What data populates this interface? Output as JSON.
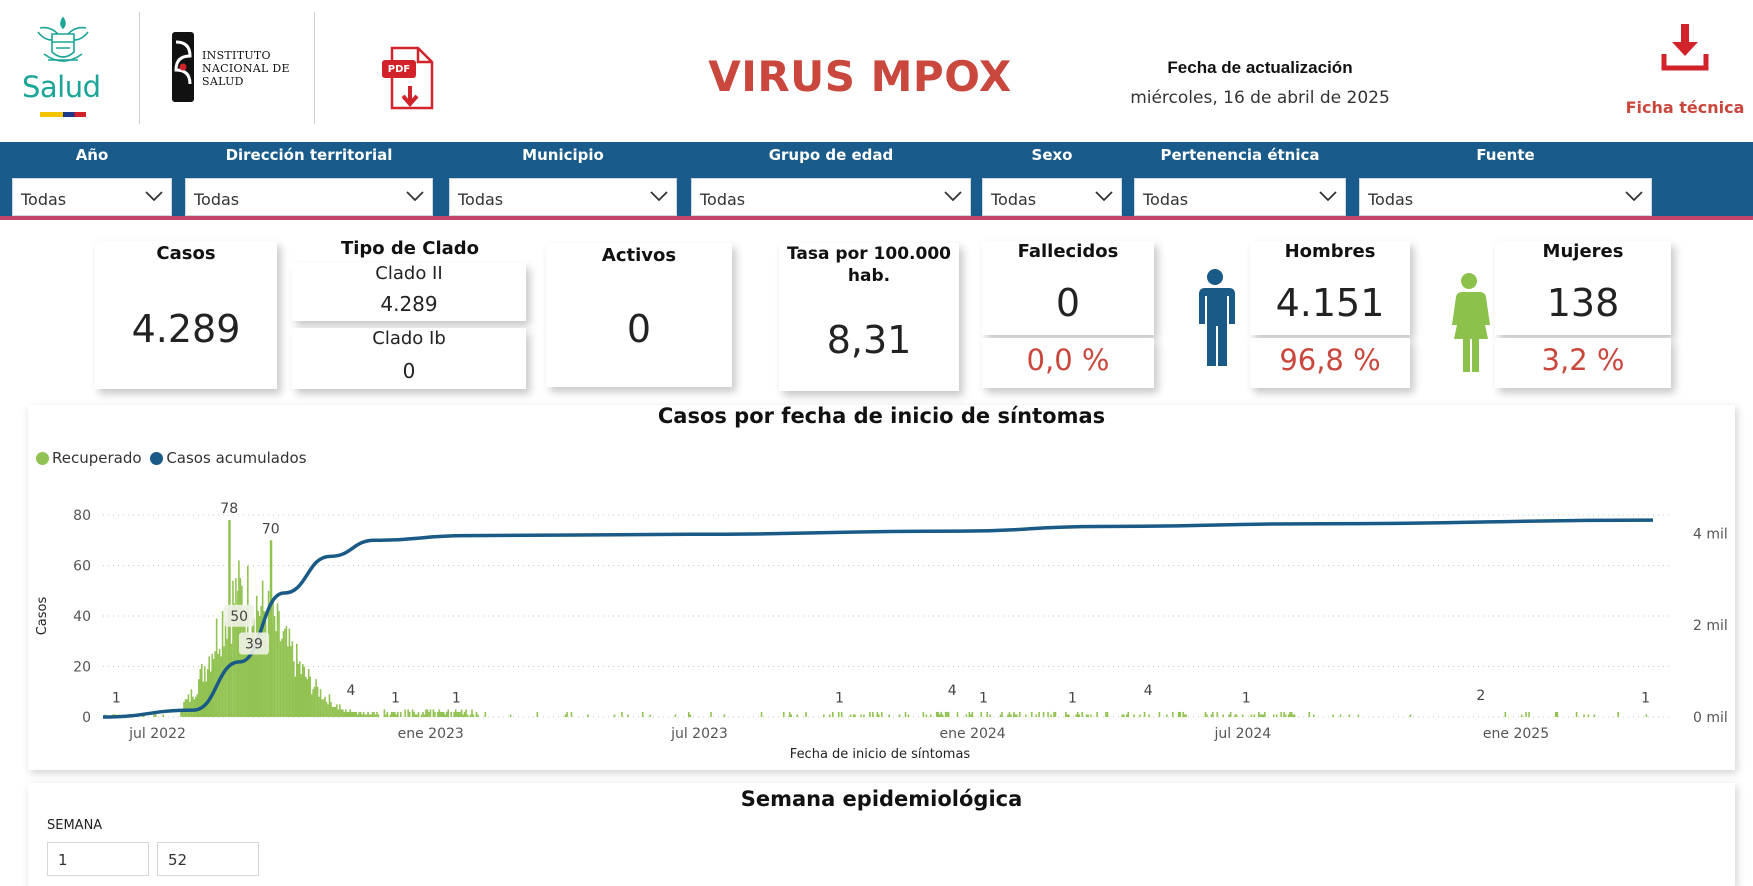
{
  "header": {
    "logo_salud_text": "Salud",
    "logo_ins_lines": [
      "Instituto",
      "Nacional de",
      "Salud"
    ],
    "pdf_icon_label": "PDF",
    "title": "VIRUS MPOX",
    "update_label": "Fecha de actualización",
    "update_date": "miércoles, 16 de abril de 2025",
    "ficha_label": "Ficha técnica"
  },
  "filters": [
    {
      "label": "Año",
      "value": "Todas"
    },
    {
      "label": "Dirección territorial",
      "value": "Todas"
    },
    {
      "label": "Municipio",
      "value": "Todas"
    },
    {
      "label": "Grupo de edad",
      "value": "Todas"
    },
    {
      "label": "Sexo",
      "value": "Todas"
    },
    {
      "label": "Pertenencia étnica",
      "value": "Todas"
    },
    {
      "label": "Fuente",
      "value": "Todas"
    }
  ],
  "kpis": {
    "casos": {
      "title": "Casos",
      "value": "4.289"
    },
    "clado": {
      "title": "Tipo de Clado",
      "items": [
        {
          "label": "Clado II",
          "value": "4.289"
        },
        {
          "label": "Clado Ib",
          "value": "0"
        }
      ]
    },
    "activos": {
      "title": "Activos",
      "value": "0"
    },
    "tasa": {
      "title_line1": "Tasa por 100.000",
      "title_line2": "hab.",
      "value": "8,31"
    },
    "fallecidos": {
      "title": "Fallecidos",
      "value": "0",
      "percent": "0,0 %"
    },
    "hombres": {
      "title": "Hombres",
      "value": "4.151",
      "percent": "96,8 %"
    },
    "mujeres": {
      "title": "Mujeres",
      "value": "138",
      "percent": "3,2 %"
    }
  },
  "colors": {
    "header_bar": "#195b8a",
    "accent_red": "#c9473d",
    "bar_green": "#92c352",
    "line_blue": "#1a5a86",
    "male_icon": "#1a5a86",
    "female_icon": "#8cc14c"
  },
  "chart_data": {
    "type": "bar",
    "title": "Casos por fecha de inicio de síntomas",
    "xlabel": "Fecha de inicio de síntomas",
    "ylabel": "Casos",
    "y2label": "Casos acumulados",
    "ylim": [
      0,
      80
    ],
    "y2lim": [
      0,
      4400
    ],
    "yticks": [
      "0",
      "20",
      "40",
      "60",
      "80"
    ],
    "y2ticks": [
      "0 mil",
      "2 mil",
      "4 mil"
    ],
    "xticks": [
      "jul 2022",
      "ene 2023",
      "jul 2023",
      "ene 2024",
      "jul 2024",
      "ene 2025"
    ],
    "grid": "horizontal dotted",
    "legend_position": "top-left",
    "series": [
      {
        "name": "Recuperado",
        "kind": "bar",
        "x_range": [
          "2022-06-01",
          "2025-04-10"
        ],
        "peak_value": 78,
        "peak_date": "2022-09-01"
      },
      {
        "name": "Casos acumulados",
        "kind": "line",
        "axis": "right",
        "points": [
          [
            "2022-06-01",
            0
          ],
          [
            "2022-08-01",
            150
          ],
          [
            "2022-09-01",
            1200
          ],
          [
            "2022-10-01",
            2700
          ],
          [
            "2022-11-01",
            3500
          ],
          [
            "2022-12-01",
            3850
          ],
          [
            "2023-02-01",
            3950
          ],
          [
            "2023-07-01",
            3980
          ],
          [
            "2024-01-01",
            4050
          ],
          [
            "2024-04-01",
            4150
          ],
          [
            "2024-09-01",
            4210
          ],
          [
            "2025-04-10",
            4289
          ]
        ]
      }
    ],
    "data_labels": [
      {
        "date": "2022-06-10",
        "value": 1
      },
      {
        "date": "2022-08-25",
        "value": 78
      },
      {
        "date": "2022-09-22",
        "value": 70
      },
      {
        "date": "2022-08-31",
        "value": 50
      },
      {
        "date": "2022-09-10",
        "value": 39
      },
      {
        "date": "2022-11-15",
        "value": 4
      },
      {
        "date": "2022-12-15",
        "value": 1
      },
      {
        "date": "2023-01-25",
        "value": 1
      },
      {
        "date": "2023-10-10",
        "value": 1
      },
      {
        "date": "2023-12-25",
        "value": 4
      },
      {
        "date": "2024-01-15",
        "value": 1
      },
      {
        "date": "2024-03-15",
        "value": 1
      },
      {
        "date": "2024-05-05",
        "value": 4
      },
      {
        "date": "2024-07-10",
        "value": 1
      },
      {
        "date": "2024-12-15",
        "value": 2
      },
      {
        "date": "2025-04-05",
        "value": 1
      }
    ]
  },
  "week": {
    "title": "Semana epidemiológica",
    "label": "SEMANA",
    "from": "1",
    "to": "52"
  }
}
